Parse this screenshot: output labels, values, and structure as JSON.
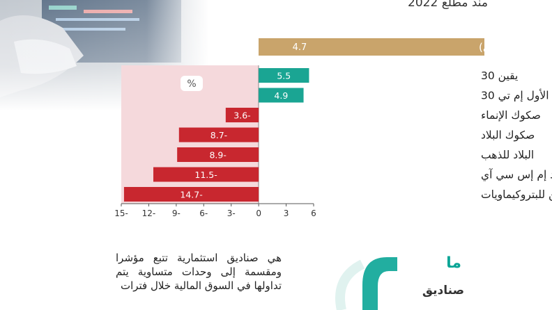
{
  "header": {
    "title": "منذ مطلع 2022"
  },
  "explainer": {
    "text": "هي صناديق استثمارية تتبع مؤشرا ومقسمة إلى وحدات متساوية يتم تداولها في السوق المالية خلال فترات"
  },
  "logo": {
    "word1": "ما",
    "word2": "صناديق"
  },
  "colors": {
    "index": "#c9a46b",
    "positive": "#1aa593",
    "negative": "#c8272f",
    "shade": "#f5d9dc",
    "photo": "#9aa3ad"
  },
  "chart_data": {
    "type": "bar",
    "orientation": "horizontal",
    "unit_badge": "%",
    "index_bar": {
      "label": "مؤشر السوق (تاسي)",
      "value": 4.7,
      "value_label": "4.7"
    },
    "categories": [
      "يقين 30",
      "الأول إم تي 30",
      "صكوك الإنماء",
      "صكوك البلاد",
      "البلاد للذهب",
      "البلاد إم إس سي آي",
      "يقين للبتروكيماويات"
    ],
    "values": [
      5.5,
      4.9,
      -3.6,
      -8.7,
      -8.9,
      -11.5,
      -14.7
    ],
    "value_labels": [
      "5.5",
      "4.9",
      "3.6-",
      "8.7-",
      "8.9-",
      "11.5-",
      "14.7-"
    ],
    "xlim": [
      -15,
      6
    ],
    "ticks": [
      -15,
      -12,
      -9,
      -6,
      -3,
      0,
      3,
      6
    ],
    "tick_labels": [
      "15-",
      "12-",
      "9-",
      "6-",
      "3-",
      "0",
      "3",
      "6"
    ]
  }
}
